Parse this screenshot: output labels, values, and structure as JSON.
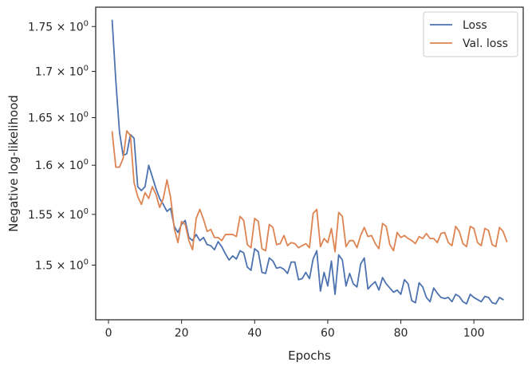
{
  "chart_data": {
    "type": "line",
    "title": "",
    "xlabel": "Epochs",
    "ylabel": "Negative log-likelihood",
    "xlim": [
      -3.5,
      113.5
    ],
    "ylim": [
      1.448,
      1.772
    ],
    "yscale": "log",
    "x_ticks": [
      0,
      20,
      40,
      60,
      80,
      100
    ],
    "x_tick_labels": [
      "0",
      "20",
      "40",
      "60",
      "80",
      "100"
    ],
    "y_ticks": [
      {
        "mantissa": "1.5",
        "value": 1.5
      },
      {
        "mantissa": "1.55",
        "value": 1.55
      },
      {
        "mantissa": "1.6",
        "value": 1.6
      },
      {
        "mantissa": "1.65",
        "value": 1.65
      },
      {
        "mantissa": "1.7",
        "value": 1.7
      },
      {
        "mantissa": "1.75",
        "value": 1.75
      }
    ],
    "y_tick_base": "10",
    "y_tick_exp": "0",
    "y_tick_times": "×",
    "grid": false,
    "legend_position": "top-right",
    "series": [
      {
        "name": "Loss",
        "color": "#4c72b0",
        "values": [
          1.757,
          1.69,
          1.635,
          1.61,
          1.612,
          1.632,
          1.628,
          1.578,
          1.574,
          1.578,
          1.6,
          1.588,
          1.576,
          1.566,
          1.56,
          1.553,
          1.556,
          1.538,
          1.532,
          1.54,
          1.544,
          1.527,
          1.524,
          1.53,
          1.524,
          1.527,
          1.52,
          1.519,
          1.515,
          1.523,
          1.518,
          1.511,
          1.505,
          1.509,
          1.506,
          1.514,
          1.512,
          1.498,
          1.495,
          1.516,
          1.513,
          1.493,
          1.492,
          1.507,
          1.504,
          1.497,
          1.498,
          1.496,
          1.492,
          1.503,
          1.503,
          1.486,
          1.487,
          1.493,
          1.487,
          1.506,
          1.514,
          1.475,
          1.493,
          1.48,
          1.504,
          1.472,
          1.51,
          1.505,
          1.48,
          1.492,
          1.482,
          1.479,
          1.501,
          1.507,
          1.477,
          1.481,
          1.484,
          1.476,
          1.488,
          1.482,
          1.478,
          1.474,
          1.476,
          1.472,
          1.486,
          1.482,
          1.466,
          1.464,
          1.483,
          1.479,
          1.469,
          1.465,
          1.478,
          1.473,
          1.469,
          1.468,
          1.469,
          1.465,
          1.472,
          1.47,
          1.465,
          1.463,
          1.472,
          1.469,
          1.467,
          1.465,
          1.47,
          1.469,
          1.464,
          1.463,
          1.469,
          1.467
        ]
      },
      {
        "name": "Val. loss",
        "color": "#dd8452",
        "values": [
          1.635,
          1.598,
          1.598,
          1.607,
          1.636,
          1.631,
          1.582,
          1.568,
          1.56,
          1.572,
          1.566,
          1.578,
          1.57,
          1.557,
          1.566,
          1.585,
          1.567,
          1.536,
          1.522,
          1.543,
          1.54,
          1.524,
          1.515,
          1.546,
          1.555,
          1.545,
          1.533,
          1.535,
          1.527,
          1.527,
          1.524,
          1.53,
          1.53,
          1.53,
          1.528,
          1.548,
          1.544,
          1.52,
          1.517,
          1.546,
          1.543,
          1.516,
          1.514,
          1.54,
          1.537,
          1.52,
          1.521,
          1.529,
          1.519,
          1.522,
          1.521,
          1.517,
          1.519,
          1.521,
          1.517,
          1.551,
          1.555,
          1.518,
          1.526,
          1.522,
          1.536,
          1.513,
          1.552,
          1.548,
          1.518,
          1.524,
          1.524,
          1.517,
          1.529,
          1.537,
          1.528,
          1.529,
          1.521,
          1.516,
          1.541,
          1.538,
          1.52,
          1.514,
          1.532,
          1.527,
          1.529,
          1.526,
          1.524,
          1.521,
          1.528,
          1.526,
          1.531,
          1.526,
          1.526,
          1.522,
          1.531,
          1.532,
          1.522,
          1.519,
          1.538,
          1.533,
          1.521,
          1.518,
          1.538,
          1.536,
          1.522,
          1.519,
          1.536,
          1.534,
          1.52,
          1.518,
          1.537,
          1.533,
          1.523
        ]
      }
    ]
  }
}
